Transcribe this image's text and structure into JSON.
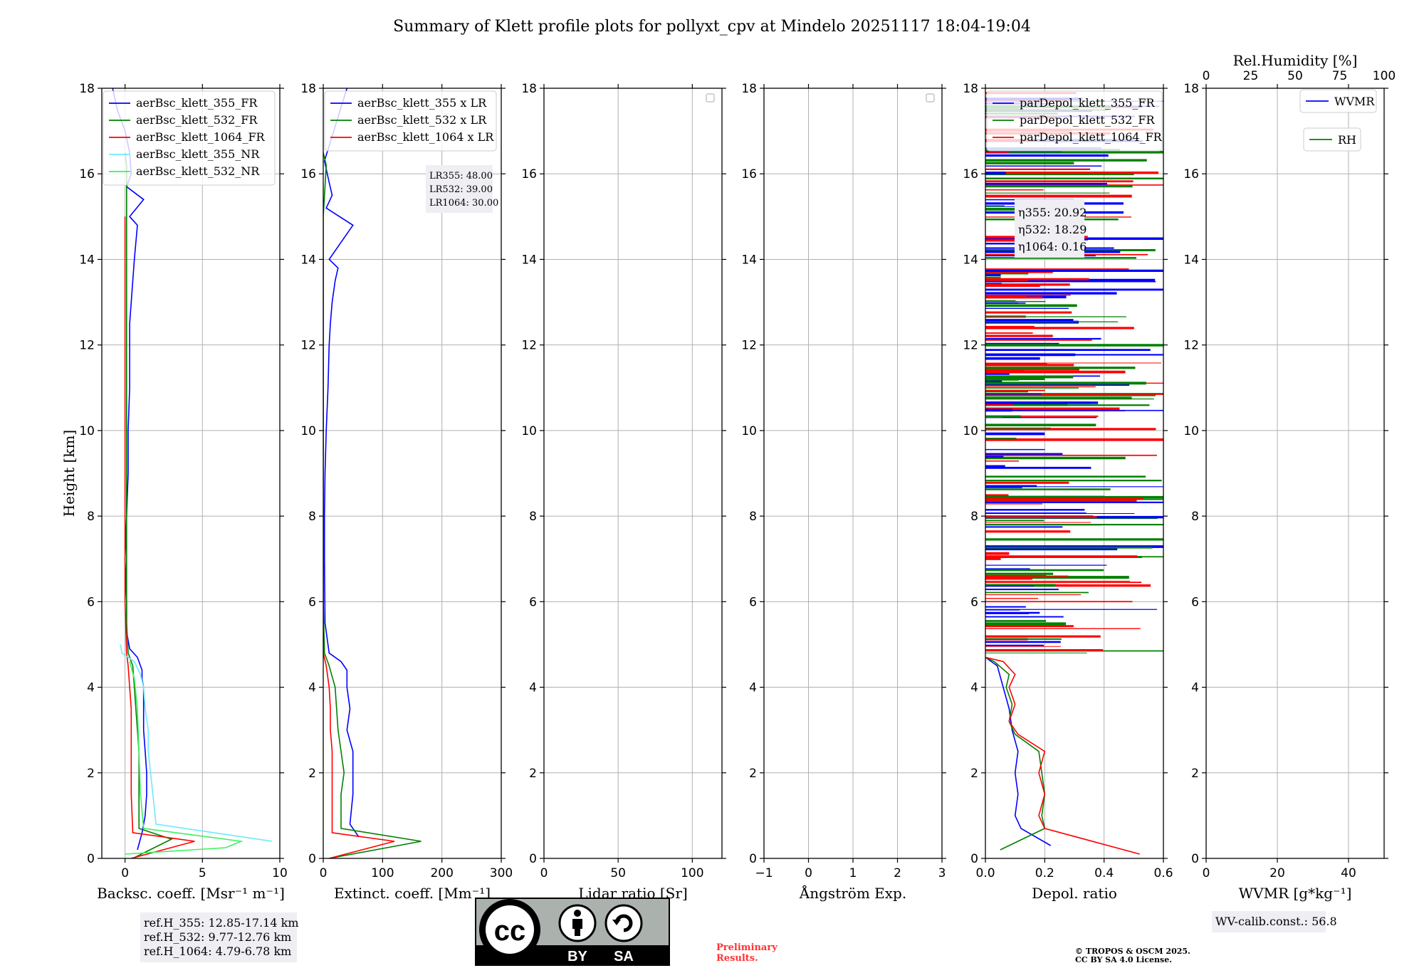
{
  "title": "Summary of Klett profile plots for pollyxt_cpv at Mindelo 20251117 18:04-19:04",
  "colors": {
    "blue": "#0000ff",
    "green": "#008000",
    "red": "#ff0000",
    "cyan": "#6fe8ff",
    "lightgreen": "#3cf060"
  },
  "chart_data": [
    {
      "type": "line",
      "id": "backscatter",
      "xlabel": "Backsc. coeff. [Msr⁻¹ m⁻¹]",
      "ylabel": "Height [km]",
      "xlim": [
        -1.5,
        10
      ],
      "ylim": [
        0,
        18
      ],
      "xticks": [
        0,
        5,
        10
      ],
      "yticks": [
        0,
        2,
        4,
        6,
        8,
        10,
        12,
        14,
        16,
        18
      ],
      "legend": [
        "aerBsc_klett_355_FR",
        "aerBsc_klett_532_FR",
        "aerBsc_klett_1064_FR",
        "aerBsc_klett_355_NR",
        "aerBsc_klett_532_NR"
      ],
      "series": [
        {
          "name": "aerBsc_klett_355_FR",
          "color": "blue",
          "x": [
            0.8,
            1.1,
            1.3,
            1.4,
            1.4,
            1.3,
            1.2,
            1.2,
            1.2,
            1.1,
            1.1,
            1.0,
            0.8,
            0.3,
            0.1,
            0.1,
            0.0,
            0.1,
            0.2,
            0.2,
            0.3,
            0.3,
            0.3,
            0.4,
            0.5,
            0.6,
            0.8,
            0.3,
            1.2,
            0.1,
            0.4,
            0.3,
            0.0,
            -0.5,
            -0.8
          ],
          "y": [
            0.2,
            0.6,
            1.0,
            1.5,
            2.0,
            2.5,
            3.0,
            3.5,
            4.0,
            4.2,
            4.4,
            4.5,
            4.7,
            4.9,
            5.3,
            6.0,
            7.0,
            8.0,
            9.0,
            10.0,
            11.0,
            12.0,
            12.5,
            13.0,
            13.5,
            14.0,
            14.8,
            15.0,
            15.4,
            15.7,
            16.0,
            16.5,
            17.0,
            17.5,
            18.0
          ]
        },
        {
          "name": "aerBsc_klett_532_FR",
          "color": "green",
          "x": [
            0.5,
            3.0,
            0.9,
            0.9,
            0.9,
            0.8,
            0.7,
            0.6,
            0.5,
            0.2,
            0.1,
            0.1,
            0.1,
            0.1,
            0.1,
            0.1,
            0.1,
            0.1,
            0.0
          ],
          "y": [
            0.0,
            0.45,
            0.7,
            1.5,
            2.5,
            3.0,
            3.5,
            4.0,
            4.5,
            4.8,
            5.5,
            7.0,
            9.0,
            11.0,
            13.0,
            14.5,
            15.5,
            16.2,
            16.5
          ]
        },
        {
          "name": "aerBsc_klett_1064_FR",
          "color": "red",
          "x": [
            0.4,
            4.5,
            0.5,
            0.4,
            0.4,
            0.4,
            0.4,
            0.3,
            0.2,
            0.1,
            0.0,
            0.0,
            0.0,
            0.0,
            0.0,
            0.0
          ],
          "y": [
            0.0,
            0.4,
            0.6,
            1.5,
            2.5,
            3.0,
            3.5,
            4.0,
            4.5,
            4.8,
            6.0,
            8.0,
            10.0,
            12.0,
            14.0,
            15.0
          ]
        },
        {
          "name": "aerBsc_klett_355_NR",
          "color": "cyan",
          "x": [
            9.5,
            2.0,
            1.8,
            1.5,
            1.5,
            1.3,
            1.2,
            1.0,
            0.6,
            -0.2,
            -0.3
          ],
          "y": [
            0.4,
            0.8,
            1.5,
            2.5,
            3.0,
            3.5,
            4.0,
            4.3,
            4.6,
            4.8,
            5.0
          ]
        },
        {
          "name": "aerBsc_klett_532_NR",
          "color": "lightgreen",
          "x": [
            0.0,
            6.5,
            7.5,
            1.2,
            1.0,
            0.9,
            0.8,
            0.6,
            0.3
          ],
          "y": [
            0.1,
            0.25,
            0.4,
            0.7,
            1.5,
            2.5,
            3.5,
            4.2,
            4.6
          ]
        }
      ],
      "annotation_lines": [
        "ref.H_355: 12.85-17.14 km",
        "ref.H_532: 9.77-12.76 km",
        "ref.H_1064: 4.79-6.78 km"
      ]
    },
    {
      "type": "line",
      "id": "extinction",
      "xlabel": "Extinct. coeff. [Mm⁻¹]",
      "xlim": [
        0,
        300
      ],
      "ylim": [
        0,
        18
      ],
      "xticks": [
        0,
        100,
        200,
        300
      ],
      "yticks": [
        0,
        2,
        4,
        6,
        8,
        10,
        12,
        14,
        16,
        18
      ],
      "legend": [
        "aerBsc_klett_355 x LR",
        "aerBsc_klett_532 x LR",
        "aerBsc_klett_1064 x LR"
      ],
      "series": [
        {
          "name": "aerBsc_klett_355 x LR",
          "color": "blue",
          "x": [
            60,
            45,
            50,
            50,
            40,
            45,
            40,
            40,
            30,
            10,
            3,
            2,
            2,
            3,
            5,
            8,
            10,
            12,
            15,
            20,
            25,
            10,
            50,
            5,
            15,
            10,
            2,
            40
          ],
          "y": [
            0.5,
            0.8,
            1.5,
            2.5,
            3.0,
            3.5,
            4.0,
            4.4,
            4.6,
            4.8,
            5.5,
            7.0,
            8.0,
            9.0,
            10.0,
            11.0,
            12.0,
            12.5,
            13.0,
            13.5,
            13.8,
            14.0,
            14.8,
            15.2,
            15.5,
            15.8,
            16.3,
            18.0
          ]
        },
        {
          "name": "aerBsc_klett_532 x LR",
          "color": "green",
          "x": [
            10,
            165,
            30,
            30,
            35,
            30,
            25,
            20,
            10,
            2,
            0,
            0,
            0,
            5,
            0
          ],
          "y": [
            0.0,
            0.4,
            0.7,
            1.5,
            2.0,
            2.5,
            3.0,
            4.0,
            4.5,
            4.8,
            6.0,
            10.0,
            15.0,
            16.2,
            16.5
          ]
        },
        {
          "name": "aerBsc_klett_1064 x LR",
          "color": "red",
          "x": [
            10,
            120,
            15,
            15,
            15,
            12,
            12,
            10,
            5,
            0,
            0,
            0
          ],
          "y": [
            0.0,
            0.4,
            0.6,
            1.5,
            2.5,
            3.0,
            3.5,
            4.0,
            4.5,
            4.8,
            8.0,
            14.0
          ]
        }
      ],
      "annotation_lines": [
        "LR355: 48.00",
        "LR532: 39.00",
        "LR1064: 30.00"
      ]
    },
    {
      "type": "line",
      "id": "lidar-ratio",
      "xlabel": "Lidar ratio [Sr]",
      "xlim": [
        0,
        120
      ],
      "ylim": [
        0,
        18
      ],
      "xticks": [
        0,
        50,
        100
      ],
      "yticks": [
        0,
        2,
        4,
        6,
        8,
        10,
        12,
        14,
        16,
        18
      ],
      "series": []
    },
    {
      "type": "line",
      "id": "angstrom",
      "xlabel": "Ångström Exp.",
      "xlim": [
        -1,
        3
      ],
      "ylim": [
        0,
        18
      ],
      "xticks": [
        -1,
        0,
        1,
        2,
        3
      ],
      "yticks": [
        0,
        2,
        4,
        6,
        8,
        10,
        12,
        14,
        16,
        18
      ],
      "series": []
    },
    {
      "type": "line",
      "id": "depol",
      "xlabel": "Depol. ratio",
      "xlim": [
        0,
        0.6
      ],
      "ylim": [
        0,
        18
      ],
      "xticks": [
        0.0,
        0.2,
        0.4,
        0.6
      ],
      "xtick_labels": [
        "0.0",
        "0.2",
        "0.4",
        "0.6"
      ],
      "yticks": [
        0,
        2,
        4,
        6,
        8,
        10,
        12,
        14,
        16,
        18
      ],
      "legend": [
        "parDepol_klett_355_FR",
        "parDepol_klett_532_FR",
        "parDepol_klett_1064_FR"
      ],
      "series": [
        {
          "name": "parDepol_klett_355_FR",
          "color": "blue",
          "x": [
            0.22,
            0.12,
            0.1,
            0.11,
            0.1,
            0.11,
            0.09,
            0.08,
            0.06,
            0.04,
            0.0
          ],
          "y": [
            0.3,
            0.7,
            1.0,
            1.5,
            2.0,
            2.5,
            3.0,
            3.5,
            4.0,
            4.5,
            4.7
          ]
        },
        {
          "name": "parDepol_klett_532_FR",
          "color": "green",
          "x": [
            0.05,
            0.2,
            0.19,
            0.2,
            0.19,
            0.18,
            0.1,
            0.08,
            0.09,
            0.07,
            0.08,
            0.03,
            0.0
          ],
          "y": [
            0.2,
            0.7,
            1.0,
            1.5,
            2.0,
            2.5,
            2.9,
            3.2,
            3.6,
            4.0,
            4.3,
            4.6,
            4.7
          ]
        },
        {
          "name": "parDepol_klett_1064_FR",
          "color": "red",
          "x": [
            0.52,
            0.2,
            0.18,
            0.2,
            0.18,
            0.2,
            0.11,
            0.08,
            0.1,
            0.08,
            0.1,
            0.06,
            0.0
          ],
          "y": [
            0.1,
            0.7,
            1.0,
            1.5,
            2.0,
            2.5,
            2.9,
            3.2,
            3.6,
            4.0,
            4.3,
            4.6,
            4.7
          ]
        }
      ],
      "annotation_lines": [
        "η355: 20.92",
        "η532: 18.29",
        "η1064: 0.16"
      ]
    },
    {
      "type": "line",
      "id": "wvmr",
      "xlabel": "WVMR [g*kg⁻¹]",
      "xlim": [
        0,
        50
      ],
      "ylim": [
        0,
        18
      ],
      "xticks": [
        0,
        20,
        40
      ],
      "yticks": [
        0,
        2,
        4,
        6,
        8,
        10,
        12,
        14,
        16,
        18
      ],
      "top_axis_label": "Rel.Humidity [%]",
      "top_xlim": [
        0,
        100
      ],
      "top_xticks": [
        0,
        25,
        50,
        75,
        100
      ],
      "legend": [
        "WVMR",
        "RH"
      ],
      "series": [],
      "annotation_lines": [
        "WV-calib.const.: 56.8"
      ]
    }
  ],
  "footer": {
    "cc_by": "BY",
    "cc_sa": "SA",
    "cc_mark": "cc",
    "preliminary": [
      "Preliminary",
      "Results."
    ],
    "copyright": [
      "© TROPOS & OSCM 2025.",
      "CC BY SA 4.0 License."
    ]
  }
}
